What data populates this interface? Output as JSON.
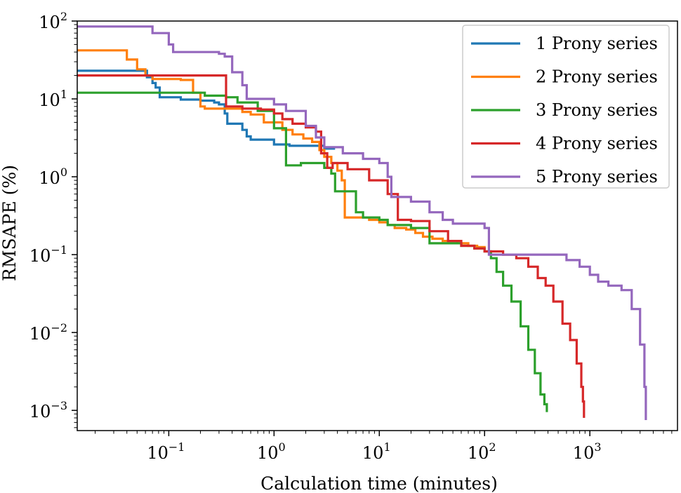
{
  "chart_data": {
    "type": "line",
    "title": "",
    "xlabel": "Calculation time (minutes)",
    "ylabel": "RMSAPE (%)",
    "xscale": "log",
    "yscale": "log",
    "xlim": [
      0.0135,
      6800
    ],
    "ylim": [
      0.00055,
      100
    ],
    "grid": false,
    "legend_position": "top-right",
    "x_ticks": [
      {
        "value": 0.1,
        "base": "10",
        "exp": "−1"
      },
      {
        "value": 1,
        "base": "10",
        "exp": "0"
      },
      {
        "value": 10,
        "base": "10",
        "exp": "1"
      },
      {
        "value": 100,
        "base": "10",
        "exp": "2"
      },
      {
        "value": 1000,
        "base": "10",
        "exp": "3"
      }
    ],
    "y_ticks": [
      {
        "value": 0.001,
        "base": "10",
        "exp": "−3"
      },
      {
        "value": 0.01,
        "base": "10",
        "exp": "−2"
      },
      {
        "value": 0.1,
        "base": "10",
        "exp": "−1"
      },
      {
        "value": 1,
        "base": "10",
        "exp": "0"
      },
      {
        "value": 10,
        "base": "10",
        "exp": "1"
      },
      {
        "value": 100,
        "base": "10",
        "exp": "2"
      }
    ],
    "series": [
      {
        "name": "1 Prony series",
        "color": "#1f77b4",
        "x": [
          0.0135,
          0.055,
          0.062,
          0.07,
          0.075,
          0.082,
          0.11,
          0.13,
          0.2,
          0.27,
          0.3,
          0.34,
          0.36,
          0.4,
          0.5,
          0.55,
          0.6,
          0.85,
          1.0,
          1.4,
          2.0,
          3.0,
          3.8
        ],
        "y": [
          23,
          23,
          19,
          16,
          14,
          10.5,
          10.5,
          9.8,
          9.5,
          9.0,
          8.5,
          6.5,
          4.8,
          4.8,
          4.0,
          3.3,
          3.0,
          3.0,
          2.6,
          2.5,
          2.5,
          2.3,
          2.3
        ]
      },
      {
        "name": "2 Prony series",
        "color": "#ff7f0e",
        "x": [
          0.0135,
          0.032,
          0.04,
          0.05,
          0.06,
          0.07,
          0.13,
          0.17,
          0.2,
          0.22,
          0.3,
          0.5,
          0.6,
          0.8,
          1.2,
          1.5,
          1.9,
          2.3,
          2.7,
          3.0,
          3.5,
          4.0,
          4.4,
          4.7,
          7.0,
          8.0,
          10,
          12,
          14,
          18,
          22,
          26,
          32,
          40,
          55,
          70,
          85,
          100
        ],
        "y": [
          42,
          42,
          32,
          24,
          20,
          18,
          17.5,
          12,
          8.0,
          7.5,
          7.5,
          6.8,
          6.3,
          5.0,
          4.0,
          3.5,
          3.1,
          2.8,
          2.2,
          1.8,
          1.5,
          1.2,
          0.9,
          0.3,
          0.3,
          0.28,
          0.26,
          0.24,
          0.22,
          0.21,
          0.19,
          0.17,
          0.16,
          0.15,
          0.14,
          0.13,
          0.125,
          0.12
        ]
      },
      {
        "name": "3 Prony series",
        "color": "#2ca02c",
        "x": [
          0.0135,
          0.15,
          0.22,
          0.35,
          0.45,
          0.7,
          1.0,
          1.3,
          1.8,
          2.3,
          3.0,
          3.5,
          3.8,
          6.0,
          7.0,
          10,
          12,
          20,
          30,
          50,
          60,
          80,
          100,
          115,
          130,
          150,
          180,
          220,
          260,
          300,
          340,
          370,
          390
        ],
        "y": [
          12,
          12,
          11,
          10.5,
          9,
          7,
          4.2,
          1.4,
          1.5,
          1.5,
          1.3,
          1.1,
          0.65,
          0.35,
          0.3,
          0.28,
          0.24,
          0.22,
          0.14,
          0.14,
          0.13,
          0.12,
          0.11,
          0.09,
          0.06,
          0.04,
          0.025,
          0.012,
          0.006,
          0.003,
          0.0016,
          0.0012,
          0.00095
        ]
      },
      {
        "name": "4 Prony series",
        "color": "#d62728",
        "x": [
          0.0135,
          0.32,
          0.35,
          0.5,
          0.6,
          0.75,
          1.0,
          1.2,
          1.5,
          2.0,
          2.5,
          2.8,
          3.2,
          3.6,
          5.0,
          8.0,
          12,
          15,
          20,
          30,
          45,
          60,
          80,
          100,
          150,
          200,
          260,
          320,
          380,
          450,
          550,
          650,
          750,
          830,
          860,
          880
        ],
        "y": [
          20,
          20,
          8.0,
          7.5,
          7.5,
          7.3,
          6.5,
          5.5,
          4.8,
          4.3,
          3.8,
          2.0,
          1.3,
          1.5,
          1.25,
          0.9,
          0.6,
          0.28,
          0.27,
          0.2,
          0.15,
          0.13,
          0.12,
          0.11,
          0.1,
          0.09,
          0.07,
          0.05,
          0.04,
          0.025,
          0.013,
          0.008,
          0.004,
          0.002,
          0.0013,
          0.0008
        ]
      },
      {
        "name": "5 Prony series",
        "color": "#9467bd",
        "x": [
          0.0135,
          0.06,
          0.07,
          0.1,
          0.11,
          0.3,
          0.34,
          0.4,
          0.5,
          0.55,
          0.75,
          1.0,
          1.3,
          2.0,
          2.5,
          3.0,
          4.5,
          7.0,
          10,
          12,
          13,
          20,
          30,
          40,
          50,
          100,
          110,
          200,
          500,
          600,
          800,
          1000,
          1200,
          1500,
          2000,
          2500,
          3000,
          3300,
          3400
        ],
        "y": [
          85,
          85,
          70,
          50,
          40,
          38,
          35,
          22,
          15,
          10,
          10,
          8.5,
          7.0,
          4.5,
          3.2,
          2.4,
          2.0,
          1.7,
          1.5,
          1.0,
          0.55,
          0.48,
          0.35,
          0.28,
          0.25,
          0.22,
          0.1,
          0.1,
          0.1,
          0.085,
          0.07,
          0.055,
          0.045,
          0.04,
          0.035,
          0.02,
          0.007,
          0.002,
          0.00075
        ]
      }
    ]
  }
}
